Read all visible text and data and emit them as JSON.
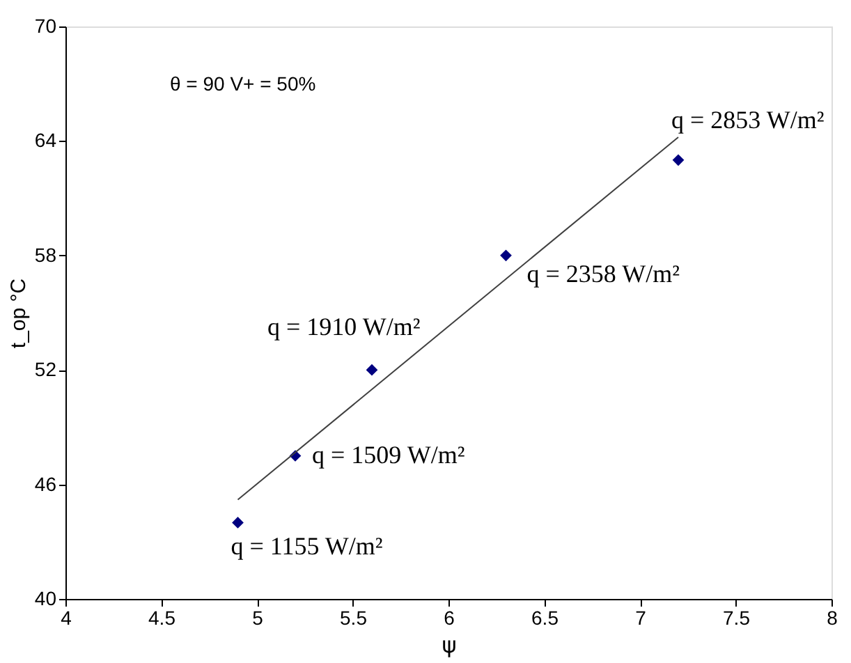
{
  "chart_data": {
    "type": "scatter",
    "xlabel": "ψ",
    "ylabel": "t_op °C",
    "xlim": [
      4,
      8
    ],
    "xticks": [
      4,
      4.5,
      5,
      5.5,
      6,
      6.5,
      7,
      7.5,
      8
    ],
    "ylim": [
      40,
      70
    ],
    "yticks": [
      40,
      46,
      52,
      58,
      64,
      70
    ],
    "grid": false,
    "series": [
      {
        "color": "#000080",
        "marker": "diamond",
        "x": [
          4.9,
          5.2,
          5.6,
          6.3,
          7.2
        ],
        "values": [
          44,
          47.5,
          52,
          58,
          63
        ]
      },
      {
        "type": "line",
        "color": "#404040",
        "line_style": "solid",
        "x": [
          4.9,
          7.2
        ],
        "values": [
          45.2,
          64.2
        ]
      }
    ],
    "annotations": [
      "θ = 90   V+ = 50%",
      {
        "text": "q = 1155 W/m²",
        "x": 4.9,
        "y": 44
      },
      {
        "text": "q = 1509 W/m²",
        "x": 5.2,
        "y": 47.5
      },
      {
        "text": "q = 1910 W/m²",
        "x": 5.6,
        "y": 52
      },
      {
        "text": "q = 2358 W/m²",
        "x": 6.3,
        "y": 58
      },
      {
        "text": "q = 2853 W/m²",
        "x": 7.2,
        "y": 63
      }
    ]
  }
}
